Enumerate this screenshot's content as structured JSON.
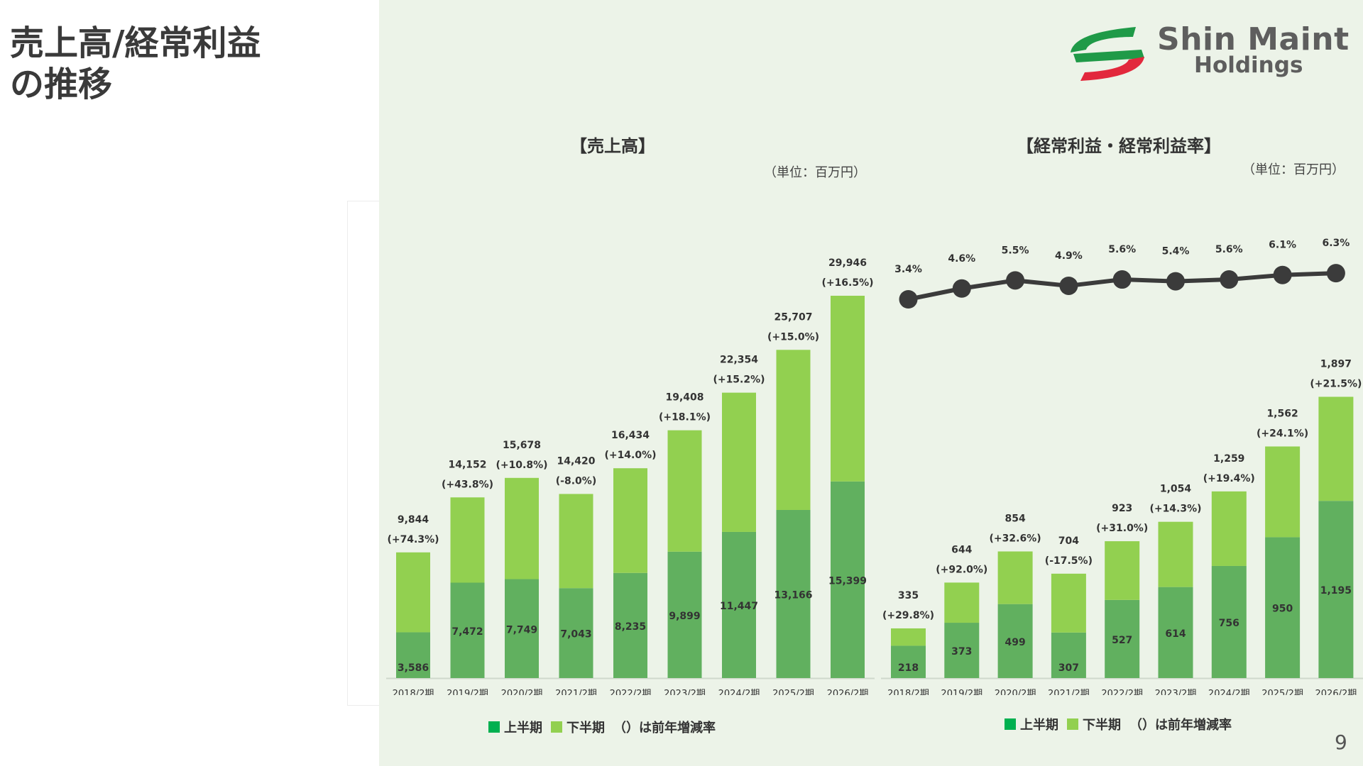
{
  "page": {
    "title_lines": [
      "売上高/経常利益",
      "の推移"
    ],
    "page_number": "9"
  },
  "logo": {
    "line1": "Shin Maint",
    "line2": "Holdings"
  },
  "legend": {
    "first_half": "上半期",
    "second_half": "下半期",
    "note": "（）は前年増減率"
  },
  "colors": {
    "first_half": "#61b05f",
    "second_half": "#92d050",
    "line": "#3b3b3b",
    "panel_bg": "#ecf3e8",
    "legend_first_half": "#00b050"
  },
  "chart_data": [
    {
      "type": "bar",
      "stacked": true,
      "title": "【売上高】",
      "unit": "（単位：百万円）",
      "categories": [
        "2018/2期",
        "2019/2期",
        "2020/2期",
        "2021/2期",
        "2022/2期",
        "2023/2期",
        "2024/2期",
        "2025/2期",
        "2026/2期"
      ],
      "series": [
        {
          "name": "上半期",
          "values": [
            3586,
            7472,
            7749,
            7043,
            8235,
            9899,
            11447,
            13166,
            15399
          ]
        },
        {
          "name": "下半期",
          "values": [
            6258,
            6680,
            7929,
            7377,
            8199,
            9509,
            10907,
            12541,
            14547
          ]
        }
      ],
      "first_half_labels": [
        "3,586",
        "7,472",
        "7,749",
        "7,043",
        "8,235",
        "9,899",
        "11,447",
        "13,166",
        "15,399"
      ],
      "total_labels": [
        "9,844",
        "14,152",
        "15,678",
        "14,420",
        "16,434",
        "19,408",
        "22,354",
        "25,707",
        "29,946"
      ],
      "growth_labels": [
        "(+74.3%)",
        "(+43.8%)",
        "(+10.8%)",
        "(-8.0%)",
        "(+14.0%)",
        "(+18.1%)",
        "(+15.2%)",
        "(+15.0%)",
        "(+16.5%)"
      ],
      "ylim": [
        0,
        36000
      ]
    },
    {
      "type": "bar",
      "stacked": true,
      "title": "【経常利益・経常利益率】",
      "unit": "（単位：百万円）",
      "categories": [
        "2018/2期",
        "2019/2期",
        "2020/2期",
        "2021/2期",
        "2022/2期",
        "2023/2期",
        "2024/2期",
        "2025/2期",
        "2026/2期"
      ],
      "series": [
        {
          "name": "上半期",
          "values": [
            218,
            373,
            499,
            307,
            527,
            614,
            756,
            950,
            1195
          ]
        },
        {
          "name": "下半期",
          "values": [
            117,
            271,
            355,
            397,
            396,
            440,
            503,
            612,
            702
          ]
        }
      ],
      "first_half_labels": [
        "218",
        "373",
        "499",
        "307",
        "527",
        "614",
        "756",
        "950",
        "1,195"
      ],
      "total_labels": [
        "335",
        "644",
        "854",
        "704",
        "923",
        "1,054",
        "1,259",
        "1,562",
        "1,897"
      ],
      "growth_labels": [
        "(+29.8%)",
        "(+92.0%)",
        "(+32.6%)",
        "(-17.5%)",
        "(+31.0%)",
        "(+14.3%)",
        "(+19.4%)",
        "(+24.1%)",
        "(+21.5%)"
      ],
      "ylim": [
        0,
        3100
      ],
      "line_series": {
        "values": [
          3.4,
          4.6,
          5.5,
          4.9,
          5.6,
          5.4,
          5.6,
          6.1,
          6.3
        ],
        "labels": [
          "3.4%",
          "4.6%",
          "5.5%",
          "4.9%",
          "5.6%",
          "5.4%",
          "5.6%",
          "6.1%",
          "6.3%"
        ]
      }
    }
  ]
}
